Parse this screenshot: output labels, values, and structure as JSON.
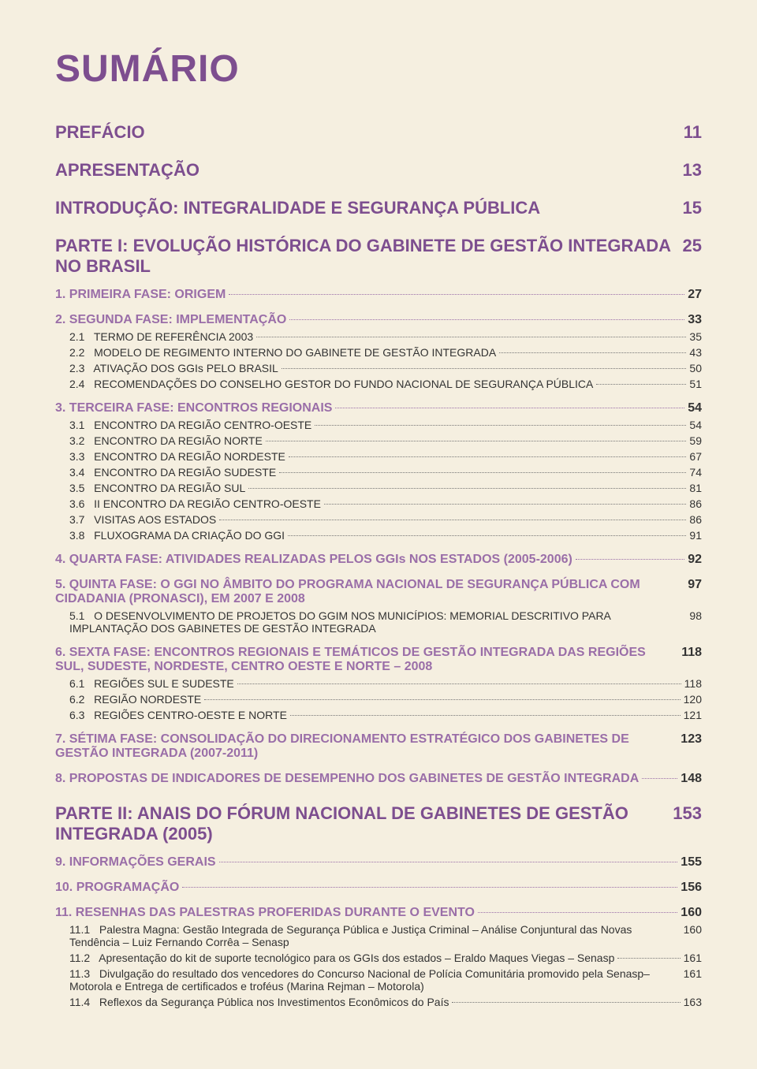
{
  "title": "SUMÁRIO",
  "colors": {
    "background": "#f5efe0",
    "title": "#7d4e8f",
    "h1": "#7d4e8f",
    "h2": "#9a6ea8",
    "body": "#333333",
    "dots": "#777777"
  },
  "typography": {
    "title_fontsize": 48,
    "h1_fontsize": 22,
    "h2_fontsize": 16,
    "h3_fontsize": 14,
    "font_family": "Helvetica, Arial, sans-serif"
  },
  "toc": [
    {
      "level": "h1",
      "label": "PREFÁCIO",
      "page": "11",
      "nodots": true
    },
    {
      "level": "h1",
      "label": "APRESENTAÇÃO",
      "page": "13",
      "nodots": true
    },
    {
      "level": "h1",
      "label": "INTRODUÇÃO: INTEGRALIDADE E SEGURANÇA PÚBLICA",
      "page": "15",
      "nodots": true
    },
    {
      "level": "h1",
      "label": "PARTE I: EVOLUÇÃO HISTÓRICA DO GABINETE DE GESTÃO INTEGRADA NO BRASIL",
      "page": "25",
      "nodots": true
    },
    {
      "level": "h2",
      "label": "1. PRIMEIRA FASE: ORIGEM",
      "page": "27"
    },
    {
      "level": "h2",
      "label": "2. SEGUNDA FASE: IMPLEMENTAÇÃO",
      "page": "33"
    },
    {
      "level": "h3",
      "label": "2.1   TERMO DE REFERÊNCIA 2003",
      "page": "35"
    },
    {
      "level": "h3",
      "label": "2.2   MODELO DE REGIMENTO INTERNO DO GABINETE DE GESTÃO INTEGRADA",
      "page": "43"
    },
    {
      "level": "h3",
      "label": "2.3   ATIVAÇÃO DOS GGIs PELO BRASIL",
      "page": "50"
    },
    {
      "level": "h3",
      "label": "2.4   RECOMENDAÇÕES DO CONSELHO GESTOR DO FUNDO NACIONAL DE SEGURANÇA PÚBLICA",
      "page": "51"
    },
    {
      "level": "h2",
      "label": "3. TERCEIRA FASE: ENCONTROS REGIONAIS",
      "page": "54"
    },
    {
      "level": "h3",
      "label": "3.1   ENCONTRO DA REGIÃO CENTRO-OESTE",
      "page": "54"
    },
    {
      "level": "h3",
      "label": "3.2   ENCONTRO DA REGIÃO NORTE",
      "page": "59"
    },
    {
      "level": "h3",
      "label": "3.3   ENCONTRO DA REGIÃO NORDESTE",
      "page": "67"
    },
    {
      "level": "h3",
      "label": "3.4   ENCONTRO DA REGIÃO SUDESTE",
      "page": "74"
    },
    {
      "level": "h3",
      "label": "3.5   ENCONTRO DA REGIÃO SUL",
      "page": "81"
    },
    {
      "level": "h3",
      "label": "3.6   II ENCONTRO DA REGIÃO CENTRO-OESTE",
      "page": "86"
    },
    {
      "level": "h3",
      "label": "3.7   VISITAS AOS ESTADOS",
      "page": "86"
    },
    {
      "level": "h3",
      "label": "3.8   FLUXOGRAMA DA CRIAÇÃO DO GGI",
      "page": "91"
    },
    {
      "level": "h2",
      "label": "4. QUARTA FASE: ATIVIDADES REALIZADAS PELOS GGIs NOS ESTADOS (2005-2006)",
      "page": "92"
    },
    {
      "level": "h2",
      "label": "5. QUINTA FASE: O GGI NO ÂMBITO DO PROGRAMA NACIONAL DE SEGURANÇA PÚBLICA COM CIDADANIA (PRONASCI), EM 2007 E 2008",
      "page": "97"
    },
    {
      "level": "h3",
      "label": "5.1   O DESENVOLVIMENTO DE PROJETOS DO GGIM NOS MUNICÍPIOS: MEMORIAL DESCRITIVO PARA IMPLANTAÇÃO DOS GABINETES DE GESTÃO INTEGRADA",
      "page": "98",
      "nodots": true
    },
    {
      "level": "h2",
      "label": "6. SEXTA FASE: ENCONTROS REGIONAIS E TEMÁTICOS DE GESTÃO INTEGRADA DAS REGIÕES SUL, SUDESTE, NORDESTE, CENTRO OESTE E NORTE – 2008",
      "page": "118"
    },
    {
      "level": "h3",
      "label": "6.1   REGIÕES SUL E SUDESTE",
      "page": "118"
    },
    {
      "level": "h3",
      "label": "6.2   REGIÃO NORDESTE",
      "page": "120"
    },
    {
      "level": "h3",
      "label": "6.3   REGIÕES CENTRO-OESTE E NORTE",
      "page": "121"
    },
    {
      "level": "h2",
      "label": "7. SÉTIMA FASE: CONSOLIDAÇÃO DO DIRECIONAMENTO ESTRATÉGICO DOS GABINETES DE GESTÃO INTEGRADA (2007-2011)",
      "page": "123"
    },
    {
      "level": "h2",
      "label": "8. PROPOSTAS DE INDICADORES DE DESEMPENHO DOS GABINETES DE GESTÃO INTEGRADA",
      "page": "148"
    },
    {
      "level": "h1",
      "label": "PARTE II: ANAIS DO FÓRUM NACIONAL DE GABINETES DE GESTÃO INTEGRADA (2005)",
      "page": "153",
      "nodots": true
    },
    {
      "level": "h2",
      "label": "9. INFORMAÇÕES GERAIS",
      "page": "155"
    },
    {
      "level": "h2",
      "label": "10. PROGRAMAÇÃO",
      "page": "156"
    },
    {
      "level": "h2",
      "label": "11. RESENHAS DAS PALESTRAS PROFERIDAS DURANTE O EVENTO",
      "page": "160"
    },
    {
      "level": "h3",
      "label": "11.1   Palestra Magna: Gestão Integrada de Segurança Pública e Justiça Criminal – Análise Conjuntural das Novas Tendência – Luiz Fernando Corrêa – Senasp",
      "page": "160",
      "nodots": true
    },
    {
      "level": "h3",
      "label": "11.2   Apresentação do kit de suporte tecnológico para os GGIs dos estados – Eraldo Maques Viegas – Senasp",
      "page": "161"
    },
    {
      "level": "h3",
      "label": "11.3   Divulgação do resultado dos vencedores do Concurso Nacional de Polícia Comunitária promovido pela Senasp–Motorola e Entrega de certificados e troféus (Marina Rejman – Motorola)",
      "page": "161"
    },
    {
      "level": "h3",
      "label": "11.4   Reflexos da Segurança Pública nos Investimentos Econômicos do País",
      "page": "163"
    }
  ]
}
